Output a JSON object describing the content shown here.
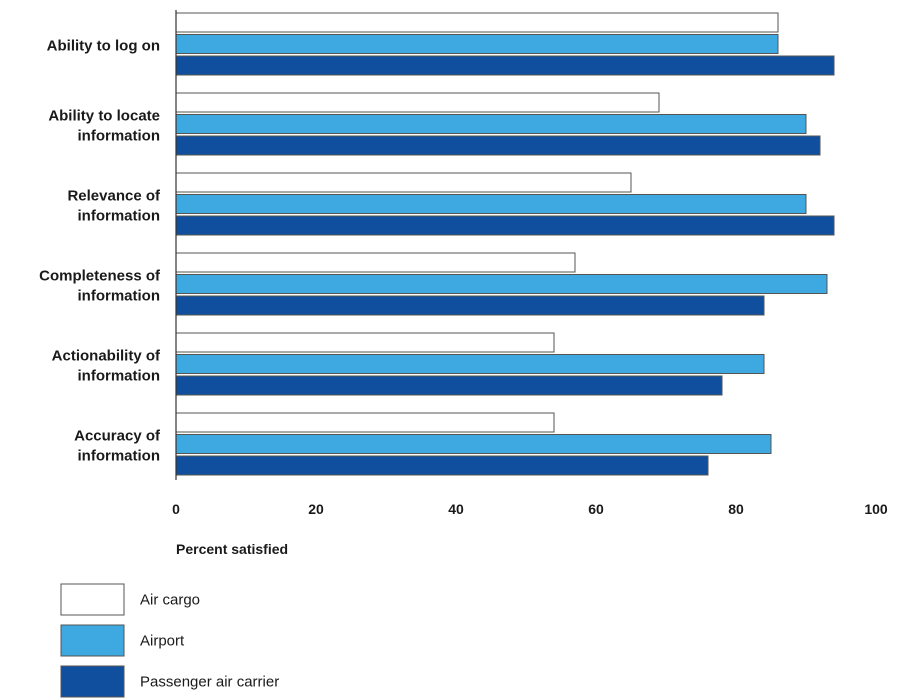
{
  "chart_data": {
    "type": "bar",
    "orientation": "horizontal",
    "categories": [
      [
        "Ability to log on"
      ],
      [
        "Ability to locate",
        "information"
      ],
      [
        "Relevance of",
        "information"
      ],
      [
        "Completeness of",
        "information"
      ],
      [
        "Actionability of",
        "information"
      ],
      [
        "Accuracy of",
        "information"
      ]
    ],
    "series": [
      {
        "name": "Air cargo",
        "color": "#ffffff",
        "values": [
          86,
          69,
          65,
          57,
          54,
          54
        ]
      },
      {
        "name": "Airport",
        "color": "#3ea9e0",
        "values": [
          86,
          90,
          90,
          93,
          84,
          85
        ]
      },
      {
        "name": "Passenger air carrier",
        "color": "#0f4f9e",
        "values": [
          94,
          92,
          94,
          84,
          78,
          76
        ]
      }
    ],
    "xlabel": "Percent satisfied",
    "xlim": [
      0,
      100
    ],
    "xticks": [
      0,
      20,
      40,
      60,
      80,
      100
    ],
    "grid": false,
    "legend_position": "bottom-left"
  }
}
